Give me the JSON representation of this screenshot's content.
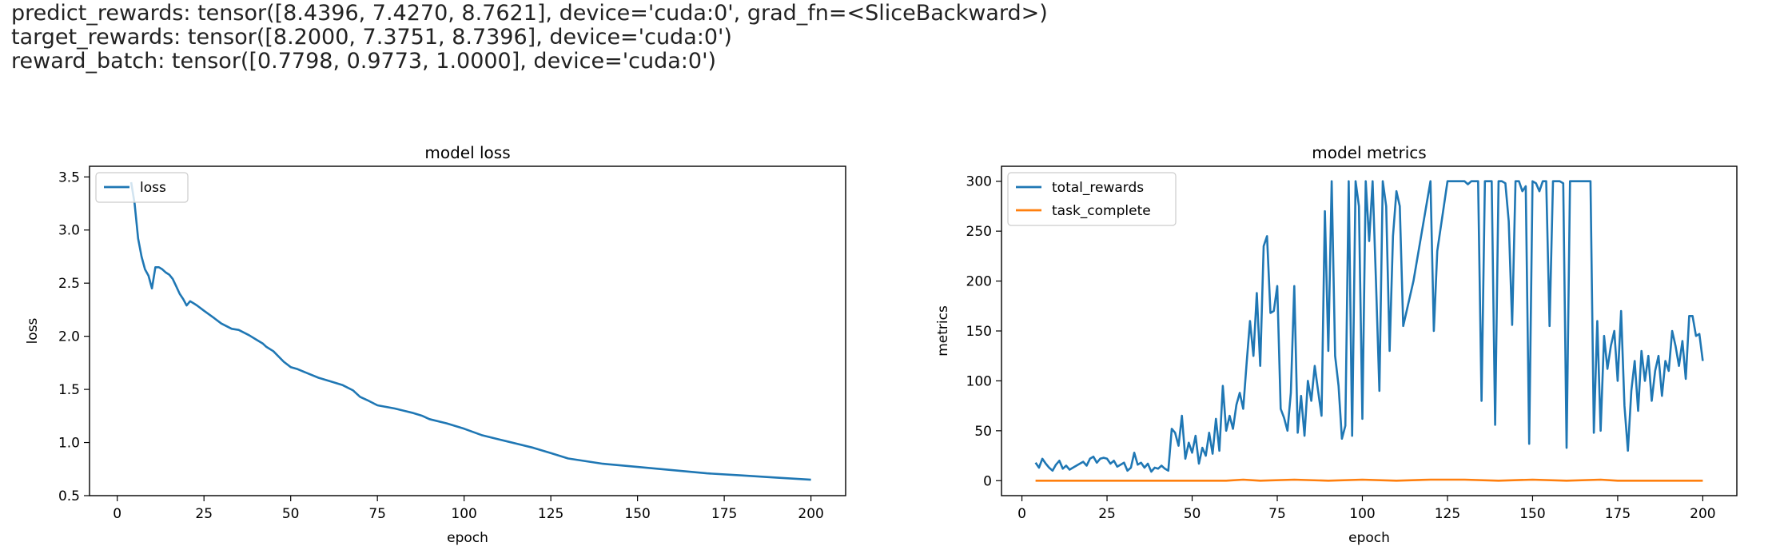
{
  "output": {
    "lines": [
      "predict_rewards: tensor([8.4396, 7.4270, 8.7621], device='cuda:0', grad_fn=<SliceBackward>)",
      "target_rewards: tensor([8.2000, 7.3751, 8.7396], device='cuda:0')",
      "reward_batch: tensor([0.7798, 0.9773, 1.0000], device='cuda:0')"
    ]
  },
  "chart_data": [
    {
      "type": "line",
      "title": "model loss",
      "xlabel": "epoch",
      "ylabel": "loss",
      "xlim": [
        -8,
        210
      ],
      "ylim": [
        0.5,
        3.6
      ],
      "xticks": [
        0,
        25,
        50,
        75,
        100,
        125,
        150,
        175,
        200
      ],
      "yticks": [
        0.5,
        1.0,
        1.5,
        2.0,
        2.5,
        3.0,
        3.5
      ],
      "ytick_labels": [
        "0.5",
        "1.0",
        "1.5",
        "2.0",
        "2.5",
        "3.0",
        "3.5"
      ],
      "legend_position": "top-left",
      "grid": false,
      "series": [
        {
          "name": "loss",
          "color": "#1f77b4",
          "x": [
            4,
            5,
            6,
            7,
            8,
            9,
            10,
            11,
            12,
            13,
            14,
            15,
            16,
            17,
            18,
            19,
            20,
            21,
            22,
            23,
            25,
            28,
            30,
            33,
            35,
            38,
            40,
            42,
            43,
            45,
            48,
            50,
            52,
            55,
            58,
            60,
            62,
            65,
            68,
            70,
            72,
            75,
            80,
            85,
            88,
            90,
            95,
            100,
            105,
            110,
            115,
            120,
            125,
            130,
            140,
            150,
            160,
            170,
            180,
            190,
            200
          ],
          "y": [
            3.45,
            3.25,
            2.92,
            2.75,
            2.63,
            2.57,
            2.45,
            2.65,
            2.65,
            2.63,
            2.6,
            2.58,
            2.54,
            2.47,
            2.4,
            2.35,
            2.29,
            2.33,
            2.31,
            2.29,
            2.24,
            2.17,
            2.12,
            2.07,
            2.06,
            2.01,
            1.97,
            1.93,
            1.9,
            1.86,
            1.76,
            1.71,
            1.69,
            1.65,
            1.61,
            1.59,
            1.57,
            1.54,
            1.49,
            1.43,
            1.4,
            1.35,
            1.32,
            1.28,
            1.25,
            1.22,
            1.18,
            1.13,
            1.07,
            1.03,
            0.99,
            0.95,
            0.9,
            0.85,
            0.8,
            0.77,
            0.74,
            0.71,
            0.69,
            0.67,
            0.65
          ]
        }
      ]
    },
    {
      "type": "line",
      "title": "model metrics",
      "xlabel": "epoch",
      "ylabel": "metrics",
      "xlim": [
        -6,
        210
      ],
      "ylim": [
        -15,
        315
      ],
      "xticks": [
        0,
        25,
        50,
        75,
        100,
        125,
        150,
        175,
        200
      ],
      "yticks": [
        0,
        50,
        100,
        150,
        200,
        250,
        300
      ],
      "ytick_labels": [
        "0",
        "50",
        "100",
        "150",
        "200",
        "250",
        "300"
      ],
      "legend_position": "top-left",
      "grid": false,
      "series": [
        {
          "name": "total_rewards",
          "color": "#1f77b4",
          "x": [
            4,
            5,
            6,
            7,
            8,
            9,
            10,
            11,
            12,
            13,
            14,
            15,
            16,
            17,
            18,
            19,
            20,
            21,
            22,
            23,
            24,
            25,
            26,
            27,
            28,
            29,
            30,
            31,
            32,
            33,
            34,
            35,
            36,
            37,
            38,
            39,
            40,
            41,
            42,
            43,
            44,
            45,
            46,
            47,
            48,
            49,
            50,
            51,
            52,
            53,
            54,
            55,
            56,
            57,
            58,
            59,
            60,
            61,
            62,
            63,
            64,
            65,
            66,
            67,
            68,
            69,
            70,
            71,
            72,
            73,
            74,
            75,
            76,
            77,
            78,
            79,
            80,
            81,
            82,
            83,
            84,
            85,
            86,
            87,
            88,
            89,
            90,
            91,
            92,
            93,
            94,
            95,
            96,
            97,
            98,
            99,
            100,
            101,
            102,
            103,
            104,
            105,
            106,
            107,
            108,
            109,
            110,
            111,
            112,
            115,
            120,
            121,
            122,
            125,
            130,
            131,
            132,
            133,
            134,
            135,
            136,
            137,
            138,
            139,
            140,
            141,
            142,
            143,
            144,
            145,
            146,
            147,
            148,
            149,
            150,
            151,
            152,
            153,
            154,
            155,
            156,
            157,
            158,
            159,
            160,
            161,
            162,
            163,
            164,
            165,
            166,
            167,
            168,
            169,
            170,
            171,
            172,
            173,
            174,
            175,
            176,
            177,
            178,
            179,
            180,
            181,
            182,
            183,
            184,
            185,
            186,
            187,
            188,
            189,
            190,
            191,
            192,
            193,
            194,
            195,
            196,
            197,
            198,
            199,
            200
          ],
          "y": [
            18,
            13,
            22,
            17,
            13,
            10,
            16,
            20,
            12,
            15,
            11,
            13,
            15,
            17,
            19,
            15,
            22,
            24,
            18,
            22,
            23,
            22,
            17,
            20,
            14,
            16,
            18,
            10,
            13,
            28,
            16,
            18,
            13,
            17,
            9,
            13,
            12,
            15,
            12,
            10,
            52,
            48,
            35,
            65,
            22,
            38,
            28,
            45,
            17,
            33,
            25,
            48,
            27,
            62,
            30,
            95,
            50,
            65,
            52,
            76,
            88,
            72,
            118,
            160,
            125,
            188,
            115,
            235,
            245,
            168,
            170,
            195,
            72,
            63,
            50,
            88,
            195,
            48,
            85,
            45,
            100,
            80,
            115,
            90,
            65,
            270,
            130,
            300,
            125,
            95,
            42,
            55,
            300,
            45,
            300,
            275,
            62,
            300,
            240,
            300,
            200,
            90,
            300,
            275,
            130,
            245,
            290,
            275,
            155,
            200,
            300,
            150,
            230,
            300,
            300,
            297,
            300,
            300,
            300,
            80,
            300,
            300,
            300,
            56,
            300,
            300,
            298,
            260,
            156,
            300,
            300,
            290,
            295,
            37,
            300,
            298,
            290,
            300,
            300,
            155,
            300,
            300,
            300,
            298,
            33,
            300,
            300,
            300,
            300,
            300,
            300,
            300,
            48,
            160,
            50,
            145,
            112,
            135,
            150,
            100,
            170,
            75,
            30,
            90,
            120,
            70,
            130,
            100,
            125,
            80,
            110,
            125,
            85,
            120,
            110,
            150,
            135,
            115,
            140,
            102,
            165,
            165,
            145,
            147,
            120
          ],
          "legend": "total_rewards"
        },
        {
          "name": "task_complete",
          "color": "#ff7f0e",
          "x": [
            4,
            60,
            65,
            70,
            80,
            90,
            100,
            110,
            120,
            130,
            140,
            150,
            160,
            170,
            175,
            180,
            190,
            200
          ],
          "y": [
            0,
            0,
            1,
            0,
            1,
            0,
            1,
            0,
            1,
            1,
            0,
            1,
            0,
            1,
            0,
            0,
            0,
            0
          ]
        }
      ]
    }
  ]
}
